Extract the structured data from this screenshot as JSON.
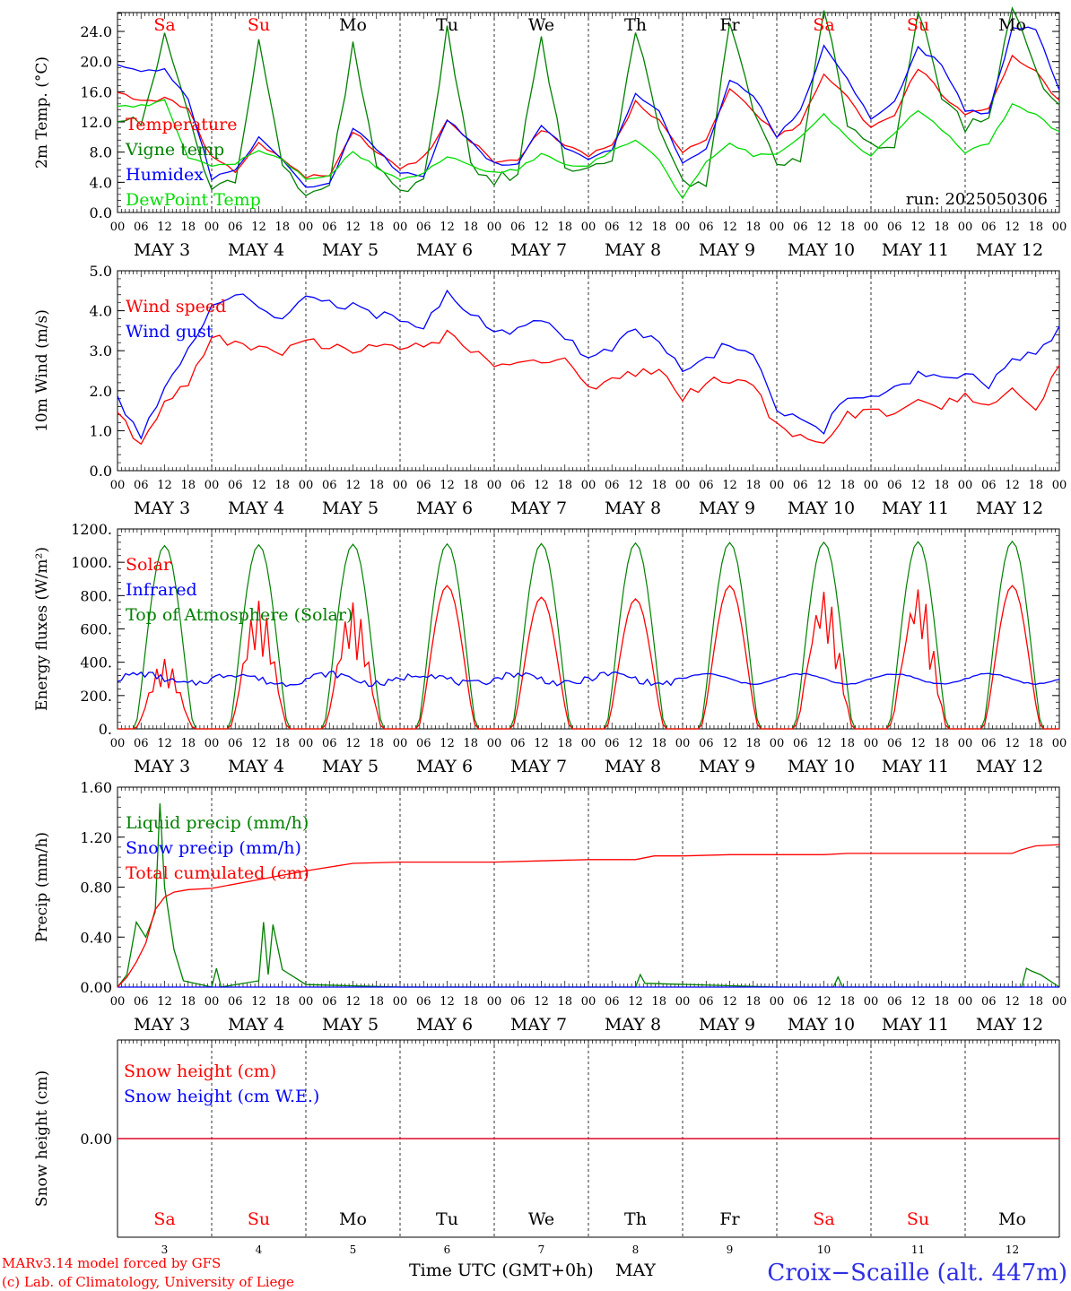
{
  "colors": {
    "temperature": "#ff0000",
    "vigne": "#008000",
    "humidex": "#0000ff",
    "dewpoint": "#00dd00",
    "weekend": "#ff0000",
    "weekday": "#000000",
    "station": "#2e2ee6",
    "credit": "#ff0000"
  },
  "time_axis": {
    "hour_ticks": [
      "00",
      "06",
      "12",
      "18"
    ],
    "final_tick": "00",
    "dates": [
      "MAY  3",
      "MAY  4",
      "MAY  5",
      "MAY  6",
      "MAY  7",
      "MAY  8",
      "MAY  9",
      "MAY  10",
      "MAY  11",
      "MAY  12"
    ],
    "weekdays": [
      "Sa",
      "Su",
      "Mo",
      "Tu",
      "We",
      "Th",
      "Fr",
      "Sa",
      "Su",
      "Mo"
    ],
    "weekend": [
      true,
      true,
      false,
      false,
      false,
      false,
      false,
      true,
      true,
      false
    ],
    "day_numbers": [
      "3",
      "4",
      "5",
      "6",
      "7",
      "8",
      "9",
      "10",
      "11",
      "12"
    ],
    "xlabel": "Time UTC (GMT+0h)",
    "month": "MAY"
  },
  "footer": {
    "credit_line1": "MARv3.14 model forced by GFS",
    "credit_line2": "(c) Lab. of Climatology, University of Liege",
    "station": "Croix−Scaille (alt. 447m)"
  },
  "chart_data": [
    {
      "type": "line",
      "ylabel": "2m Temp. (°C)",
      "ylim": [
        0,
        26.5
      ],
      "yticks": [
        "0.0",
        "4.0",
        "8.0",
        "12.0",
        "16.0",
        "20.0",
        "24.0"
      ],
      "ytick_values": [
        0,
        4,
        8,
        12,
        16,
        20,
        24
      ],
      "annotation": "run: 2025050306",
      "x_days": [
        0,
        0.25,
        0.5,
        0.75,
        1,
        1.25,
        1.5,
        1.75,
        2,
        2.25,
        2.5,
        2.75,
        3,
        3.25,
        3.5,
        3.75,
        4,
        4.25,
        4.5,
        4.75,
        5,
        5.25,
        5.5,
        5.75,
        6,
        6.25,
        6.5,
        6.75,
        7,
        7.25,
        7.5,
        7.75,
        8,
        8.25,
        8.5,
        8.75,
        9,
        9.25,
        9.5,
        9.75,
        10
      ],
      "series": [
        {
          "name": "Temperature",
          "color": "#ff0000",
          "values": [
            16.1,
            14.7,
            15.2,
            13.5,
            7.2,
            5.4,
            9.2,
            7.0,
            4.6,
            5.1,
            10.6,
            8.2,
            5.8,
            7.2,
            12.1,
            9.5,
            6.7,
            7.0,
            11.1,
            8.8,
            7.5,
            8.8,
            14.6,
            12.3,
            8.2,
            9.7,
            16.5,
            13.6,
            10.2,
            11.6,
            18.5,
            15.2,
            11.2,
            12.8,
            19.2,
            15.8,
            13.0,
            13.5,
            20.8,
            18.6,
            14.6
          ]
        },
        {
          "name": "Vigne temp",
          "color": "#008000",
          "values": [
            12.8,
            11.5,
            23.3,
            12.5,
            3.2,
            4.7,
            22.6,
            6.9,
            2.0,
            3.8,
            22.0,
            6.1,
            2.5,
            4.3,
            24.0,
            6.2,
            4.4,
            5.3,
            23.6,
            6.2,
            5.7,
            6.7,
            24.5,
            11.6,
            4.1,
            3.4,
            25.2,
            13.7,
            6.9,
            6.6,
            27.0,
            11.9,
            9.9,
            8.1,
            27.0,
            15.7,
            11.1,
            12.7,
            27.0,
            18.7,
            13.8
          ]
        },
        {
          "name": "Humidex",
          "color": "#0000ff",
          "values": [
            19.7,
            18.6,
            19.0,
            15.2,
            4.5,
            5.5,
            9.8,
            7.2,
            3.4,
            3.7,
            11.2,
            8.4,
            5.2,
            4.8,
            12.3,
            9.3,
            6.4,
            6.6,
            11.6,
            8.5,
            7.1,
            8.2,
            15.6,
            13.3,
            6.4,
            8.2,
            17.6,
            15.5,
            10.1,
            13.4,
            22.0,
            17.6,
            12.3,
            14.8,
            21.8,
            19.7,
            13.6,
            13.1,
            24.3,
            24.4,
            16.4
          ]
        },
        {
          "name": "DewPoint Temp",
          "color": "#00dd00",
          "values": [
            14.2,
            14.1,
            14.9,
            7.3,
            6.0,
            6.5,
            8.1,
            7.0,
            4.5,
            5.0,
            8.1,
            6.0,
            4.3,
            5.2,
            7.5,
            6.1,
            5.3,
            5.7,
            7.8,
            6.2,
            6.2,
            8.3,
            9.7,
            7.0,
            1.9,
            6.7,
            9.2,
            7.6,
            7.6,
            9.9,
            13.0,
            9.8,
            7.5,
            10.4,
            13.6,
            11.1,
            8.0,
            9.1,
            14.3,
            12.9,
            10.6
          ]
        }
      ]
    },
    {
      "type": "line",
      "ylabel": "10m Wind (m/s)",
      "ylim": [
        0,
        5.0
      ],
      "yticks": [
        "0.0",
        "1.0",
        "2.0",
        "3.0",
        "4.0",
        "5.0"
      ],
      "ytick_values": [
        0,
        1,
        2,
        3,
        4,
        5
      ],
      "x_days": [
        0,
        0.25,
        0.5,
        0.75,
        1,
        1.25,
        1.5,
        1.75,
        2,
        2.25,
        2.5,
        2.75,
        3,
        3.25,
        3.5,
        3.75,
        4,
        4.25,
        4.5,
        4.75,
        5,
        5.25,
        5.5,
        5.75,
        6,
        6.25,
        6.5,
        6.75,
        7,
        7.25,
        7.5,
        7.75,
        8,
        8.25,
        8.5,
        8.75,
        9,
        9.25,
        9.5,
        9.75,
        10
      ],
      "series": [
        {
          "name": "Wind speed",
          "color": "#ff0000",
          "values": [
            1.4,
            0.6,
            1.7,
            2.2,
            3.3,
            3.2,
            3.0,
            2.9,
            3.3,
            3.1,
            3.0,
            3.1,
            3.0,
            3.1,
            3.4,
            3.0,
            2.7,
            2.8,
            2.7,
            2.7,
            2.1,
            2.3,
            2.4,
            2.6,
            1.8,
            2.2,
            2.3,
            2.1,
            1.1,
            0.8,
            0.6,
            1.4,
            1.5,
            1.4,
            1.7,
            1.6,
            1.9,
            1.6,
            2.1,
            1.4,
            2.7
          ]
        },
        {
          "name": "Wind gust",
          "color": "#0000ff",
          "values": [
            1.8,
            0.8,
            2.0,
            3.0,
            4.2,
            4.4,
            4.1,
            3.7,
            4.3,
            4.2,
            4.1,
            3.9,
            3.8,
            3.6,
            4.4,
            4.0,
            3.5,
            3.5,
            3.7,
            3.4,
            2.8,
            3.1,
            3.5,
            3.3,
            2.4,
            2.8,
            3.2,
            2.8,
            1.6,
            1.2,
            1.0,
            1.9,
            1.8,
            2.0,
            2.4,
            2.3,
            2.4,
            2.1,
            2.7,
            3.0,
            3.5
          ]
        }
      ]
    },
    {
      "type": "line",
      "ylabel": "Energy fluxes (W/m²)",
      "ylim": [
        0,
        1200
      ],
      "yticks": [
        "0.",
        "200.",
        "400.",
        "600.",
        "800.",
        "1000.",
        "1200."
      ],
      "ytick_values": [
        0,
        200,
        400,
        600,
        800,
        1000,
        1200
      ],
      "daily_peaks": {
        "Solar": [
          420,
          770,
          760,
          860,
          790,
          780,
          860,
          840,
          860,
          860
        ],
        "Top of Atmosphere (Solar)": [
          1100,
          1105,
          1108,
          1110,
          1112,
          1115,
          1118,
          1120,
          1123,
          1125
        ]
      },
      "infrared_range": [
        250,
        380
      ],
      "series": [
        {
          "name": "Solar",
          "color": "#ff0000"
        },
        {
          "name": "Infrared",
          "color": "#0000ff"
        },
        {
          "name": "Top of Atmosphere (Solar)",
          "color": "#008000"
        }
      ]
    },
    {
      "type": "line",
      "ylabel": "Precip (mm/h)",
      "ylim": [
        0,
        1.6
      ],
      "yticks": [
        "0.00",
        "0.40",
        "0.80",
        "1.20",
        "1.60"
      ],
      "ytick_values": [
        0,
        0.4,
        0.8,
        1.2,
        1.6
      ],
      "x_days": [
        0,
        0.1,
        0.2,
        0.3,
        0.4,
        0.5,
        0.6,
        0.75,
        1.0,
        1.5,
        2.0,
        2.5,
        3.0,
        3.5,
        4.0,
        4.5,
        5.0,
        5.5,
        5.7,
        6.0,
        6.5,
        7.0,
        7.5,
        7.75,
        8.0,
        9.0,
        9.5,
        9.6,
        9.75,
        10.0
      ],
      "series": [
        {
          "name": "Liquid precip (mm/h)",
          "color": "#008000",
          "x_days": [
            0,
            0.1,
            0.2,
            0.3,
            0.4,
            0.45,
            0.5,
            0.6,
            0.7,
            1.0,
            1.05,
            1.1,
            1.5,
            1.55,
            1.6,
            1.65,
            1.75,
            2.0,
            3.0,
            5.5,
            5.55,
            5.6,
            7.0,
            7.6,
            7.65,
            7.7,
            9.6,
            9.65,
            9.7,
            9.8,
            10.0
          ],
          "values": [
            0.0,
            0.1,
            0.52,
            0.4,
            0.6,
            1.47,
            0.8,
            0.3,
            0.05,
            0.0,
            0.15,
            0.0,
            0.05,
            0.52,
            0.1,
            0.5,
            0.14,
            0.02,
            0.0,
            0.0,
            0.1,
            0.03,
            0.0,
            0.0,
            0.08,
            0.0,
            0.0,
            0.15,
            0.13,
            0.1,
            0.0
          ]
        },
        {
          "name": "Snow precip (mm/h)",
          "color": "#0000ff",
          "x_days": [
            0,
            10
          ],
          "values": [
            0.0,
            0.0
          ]
        },
        {
          "name": "Total cumulated (cm)",
          "color": "#ff0000",
          "values": [
            0.0,
            0.08,
            0.2,
            0.35,
            0.62,
            0.72,
            0.76,
            0.78,
            0.79,
            0.86,
            0.93,
            0.99,
            1.0,
            1.0,
            1.0,
            1.01,
            1.02,
            1.02,
            1.05,
            1.05,
            1.06,
            1.06,
            1.06,
            1.07,
            1.07,
            1.07,
            1.07,
            1.1,
            1.13,
            1.14
          ]
        }
      ]
    },
    {
      "type": "line",
      "ylabel": "Snow height (cm)",
      "yticks": [
        "0.00"
      ],
      "ytick_values": [
        0
      ],
      "ylim": [
        -1,
        1
      ],
      "x_days": [
        0,
        10
      ],
      "series": [
        {
          "name": "Snow height (cm)",
          "color": "#ff0000",
          "values": [
            0,
            0
          ]
        },
        {
          "name": "Snow height (cm W.E.)",
          "color": "#0000ff",
          "values": [
            0,
            0
          ]
        }
      ]
    }
  ]
}
